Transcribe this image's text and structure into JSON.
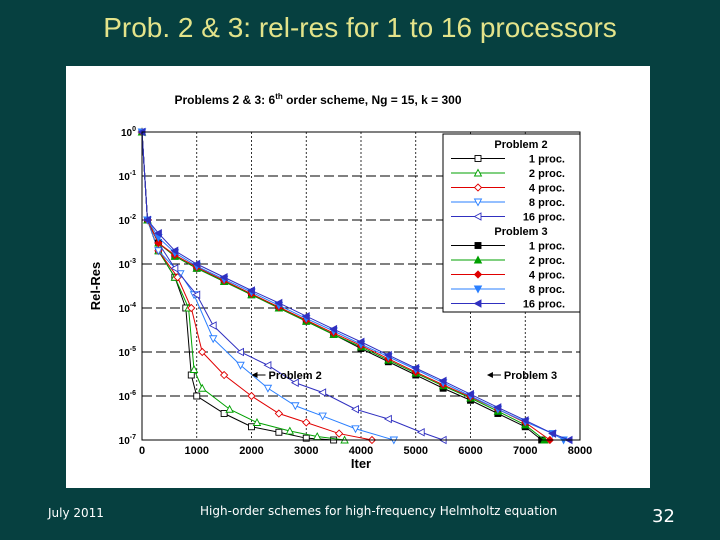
{
  "slide": {
    "title": "Prob. 2 & 3: rel-res for 1 to 16 processors",
    "footer_date": "July 2011",
    "footer_caption": "High-order schemes for high-frequency Helmholtz equation",
    "page_number": "32"
  },
  "chart_data": {
    "type": "line",
    "title": "Problems 2 & 3:  6th order scheme,  Ng = 15,  k = 300",
    "title_parts": {
      "pre": "Problems 2 & 3:  6",
      "sup": "th",
      "post": " order scheme,  Ng = 15,  k = 300"
    },
    "xlabel": "Iter",
    "ylabel": "Rel-Res",
    "xlim": [
      0,
      8000
    ],
    "ylim_log10": [
      -7,
      0
    ],
    "y_scale": "log",
    "x_ticks": [
      "0",
      "1000",
      "2000",
      "3000",
      "4000",
      "5000",
      "6000",
      "7000",
      "8000"
    ],
    "y_ticks": [
      {
        "base": "10",
        "exp": "0"
      },
      {
        "base": "10",
        "exp": "-1"
      },
      {
        "base": "10",
        "exp": "-2"
      },
      {
        "base": "10",
        "exp": "-3"
      },
      {
        "base": "10",
        "exp": "-4"
      },
      {
        "base": "10",
        "exp": "-5"
      },
      {
        "base": "10",
        "exp": "-6"
      },
      {
        "base": "10",
        "exp": "-7"
      }
    ],
    "grid": true,
    "legend_position": "top-right",
    "legend_groups": [
      "Problem 2",
      "Problem 3"
    ],
    "annotations": [
      "Problem 2",
      "Problem 3"
    ],
    "series": [
      {
        "name": "1 proc.",
        "group": "Problem 2",
        "color": "#000000",
        "marker": "square",
        "filled": false,
        "x": [
          0,
          100,
          300,
          600,
          800,
          900,
          1000,
          1500,
          2000,
          2500,
          3000,
          3500
        ],
        "y": [
          1,
          0.01,
          0.002,
          0.0005,
          0.0001,
          3e-06,
          1e-06,
          4e-07,
          2e-07,
          1.5e-07,
          1.1e-07,
          1e-07
        ]
      },
      {
        "name": "2 proc.",
        "group": "Problem 2",
        "color": "#00a000",
        "marker": "triangle-up",
        "filled": false,
        "x": [
          0,
          100,
          300,
          600,
          850,
          950,
          1100,
          1600,
          2100,
          2700,
          3200,
          3700
        ],
        "y": [
          1,
          0.01,
          0.002,
          0.0005,
          0.0001,
          4e-06,
          1.5e-06,
          5e-07,
          2.5e-07,
          1.6e-07,
          1.2e-07,
          1e-07
        ]
      },
      {
        "name": "4 proc.",
        "group": "Problem 2",
        "color": "#e00000",
        "marker": "diamond",
        "filled": false,
        "x": [
          0,
          100,
          300,
          650,
          900,
          1100,
          1500,
          2000,
          2500,
          3000,
          3600,
          4200
        ],
        "y": [
          1,
          0.01,
          0.002,
          0.0005,
          0.0001,
          1e-05,
          3e-06,
          1e-06,
          4e-07,
          2.5e-07,
          1.4e-07,
          1e-07
        ]
      },
      {
        "name": "8 proc.",
        "group": "Problem 2",
        "color": "#2a7fff",
        "marker": "triangle-down",
        "filled": false,
        "x": [
          0,
          100,
          300,
          700,
          950,
          1300,
          1800,
          2300,
          2800,
          3300,
          3900,
          4600
        ],
        "y": [
          1,
          0.01,
          0.002,
          0.0006,
          0.0002,
          2e-05,
          5e-06,
          1.5e-06,
          6e-07,
          3.5e-07,
          1.8e-07,
          1e-07
        ]
      },
      {
        "name": "16 proc.",
        "group": "Problem 2",
        "color": "#3030c0",
        "marker": "triangle-left",
        "filled": false,
        "x": [
          0,
          100,
          300,
          600,
          1000,
          1300,
          1800,
          2300,
          2800,
          3300,
          3900,
          4500,
          5100,
          5500
        ],
        "y": [
          1,
          0.01,
          0.003,
          0.0008,
          0.0002,
          4e-05,
          1e-05,
          5e-06,
          2e-06,
          1.2e-06,
          5e-07,
          3e-07,
          1.5e-07,
          1e-07
        ]
      },
      {
        "name": "1 proc.",
        "group": "Problem 3",
        "color": "#000000",
        "marker": "square",
        "filled": true,
        "x": [
          0,
          100,
          300,
          600,
          1000,
          1500,
          2000,
          2500,
          3000,
          3500,
          4000,
          4500,
          5000,
          5500,
          6000,
          6500,
          7000,
          7300
        ],
        "y": [
          1,
          0.01,
          0.003,
          0.0015,
          0.0008,
          0.0004,
          0.0002,
          0.0001,
          5e-05,
          2.5e-05,
          1.2e-05,
          6e-06,
          3e-06,
          1.5e-06,
          8e-07,
          4e-07,
          2e-07,
          1e-07
        ]
      },
      {
        "name": "2 proc.",
        "group": "Problem 3",
        "color": "#00a000",
        "marker": "triangle-up",
        "filled": true,
        "x": [
          0,
          100,
          300,
          600,
          1000,
          1500,
          2000,
          2500,
          3000,
          3500,
          4000,
          4500,
          5000,
          5500,
          6000,
          6500,
          7000,
          7350
        ],
        "y": [
          1,
          0.01,
          0.003,
          0.0015,
          0.0008,
          0.0004,
          0.0002,
          0.0001,
          5e-05,
          2.5e-05,
          1.3e-05,
          6.5e-06,
          3.3e-06,
          1.7e-06,
          9e-07,
          4.5e-07,
          2.2e-07,
          1e-07
        ]
      },
      {
        "name": "4 proc.",
        "group": "Problem 3",
        "color": "#e00000",
        "marker": "diamond",
        "filled": true,
        "x": [
          0,
          100,
          300,
          600,
          1000,
          1500,
          2000,
          2500,
          3000,
          3500,
          4000,
          4500,
          5000,
          5500,
          6000,
          6500,
          7000,
          7450
        ],
        "y": [
          1,
          0.01,
          0.003,
          0.0016,
          0.00085,
          0.00042,
          0.00021,
          0.000105,
          5.3e-05,
          2.7e-05,
          1.4e-05,
          7e-06,
          3.5e-06,
          1.8e-06,
          9.5e-07,
          5e-07,
          2.5e-07,
          1e-07
        ]
      },
      {
        "name": "8 proc.",
        "group": "Problem 3",
        "color": "#2a7fff",
        "marker": "triangle-down",
        "filled": true,
        "x": [
          0,
          100,
          300,
          600,
          1000,
          1500,
          2000,
          2500,
          3000,
          3500,
          4000,
          4500,
          5000,
          5500,
          6000,
          6500,
          7000,
          7500,
          7700
        ],
        "y": [
          1,
          0.01,
          0.004,
          0.0018,
          0.0009,
          0.00045,
          0.00023,
          0.000115,
          5.8e-05,
          3e-05,
          1.5e-05,
          7.8e-06,
          4e-06,
          2e-06,
          1e-06,
          5e-07,
          2.6e-07,
          1.4e-07,
          1e-07
        ]
      },
      {
        "name": "16 proc.",
        "group": "Problem 3",
        "color": "#3030c0",
        "marker": "triangle-left",
        "filled": true,
        "x": [
          0,
          100,
          300,
          600,
          1000,
          1500,
          2000,
          2500,
          3000,
          3500,
          4000,
          4500,
          5000,
          5500,
          6000,
          6500,
          7000,
          7500,
          7800
        ],
        "y": [
          1,
          0.01,
          0.005,
          0.002,
          0.001,
          0.0005,
          0.00025,
          0.00013,
          6.5e-05,
          3.3e-05,
          1.7e-05,
          8.5e-06,
          4.3e-06,
          2.2e-06,
          1.1e-06,
          5.5e-07,
          2.8e-07,
          1.4e-07,
          1e-07
        ]
      }
    ]
  }
}
